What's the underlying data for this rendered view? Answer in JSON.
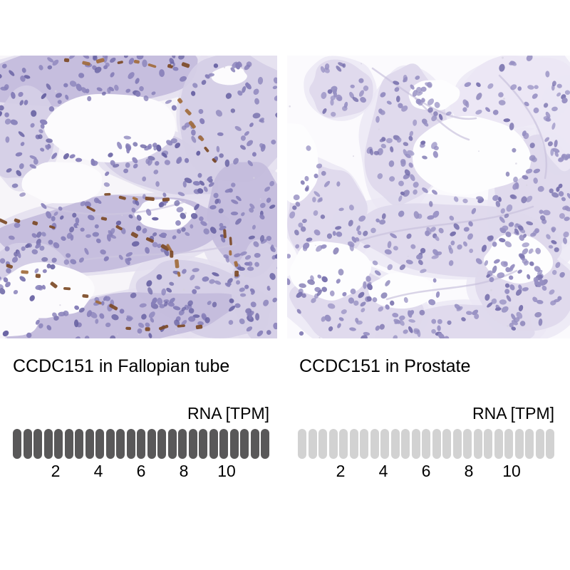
{
  "figure": {
    "background_color": "#ffffff",
    "text_color": "#000000",
    "panels": [
      {
        "id": "fallopian-tube",
        "title": "CCDC151 in Fallopian tube",
        "rna_unit_label": "RNA [TPM]",
        "image_description": "IHC micrograph of fallopian tube: purple-stained folded epithelium with white lumens and brown DAB staining along apical cell borders",
        "scale": {
          "pill_count": 25,
          "pill_color": "#595859",
          "tick_values": [
            2,
            4,
            6,
            8,
            10
          ]
        }
      },
      {
        "id": "prostate",
        "title": "CCDC151 in Prostate",
        "rna_unit_label": "RNA [TPM]",
        "image_description": "IHC micrograph of prostate: pale lavender glandular tissue with white gland lumens and no brown staining",
        "scale": {
          "pill_count": 25,
          "pill_color": "#d2d2d2",
          "tick_values": [
            2,
            4,
            6,
            8,
            10
          ]
        }
      }
    ]
  },
  "chart_data": [
    {
      "type": "bar",
      "title": "CCDC151 in Fallopian tube",
      "axis_label": "RNA [TPM]",
      "tick_labels": [
        2,
        4,
        6,
        8,
        10
      ],
      "axis_range": [
        0,
        12.5
      ],
      "units_per_pill": 0.5,
      "pill_count": 25,
      "filled_pill_count": 25,
      "pill_color": "#595859",
      "orientation": "horizontal",
      "grid": false,
      "legend_position": "none"
    },
    {
      "type": "bar",
      "title": "CCDC151 in Prostate",
      "axis_label": "RNA [TPM]",
      "tick_labels": [
        2,
        4,
        6,
        8,
        10
      ],
      "axis_range": [
        0,
        12.5
      ],
      "units_per_pill": 0.5,
      "pill_count": 25,
      "filled_pill_count": 0,
      "pill_color": "#d2d2d2",
      "orientation": "horizontal",
      "grid": false,
      "legend_position": "none"
    }
  ],
  "palette": {
    "micrograph": {
      "left": {
        "background": "#f7f5f9",
        "lumen": "#fcfbfd",
        "tissue_light": "#e3deee",
        "tissue": "#d5cfe6",
        "tissue_dense": "#c4bcdc",
        "nucleus": "#8780b9",
        "nucleus_dark": "#6a64a4",
        "wisp": "#cdc6e0",
        "dust": "#d4d1de",
        "dab_brown": "#7c4a26",
        "dab_brown_light": "#a16b3c"
      },
      "right": {
        "background": "#fbfafd",
        "lumen": "#fdfdfe",
        "tissue_light": "#ebe7f4",
        "tissue": "#ded9ec",
        "tissue_dense": "#cfc8e2",
        "nucleus": "#968fc2",
        "nucleus_dark": "#7b74af",
        "wisp": "#c9c2dd",
        "dust": "#d8d5e2"
      }
    }
  }
}
